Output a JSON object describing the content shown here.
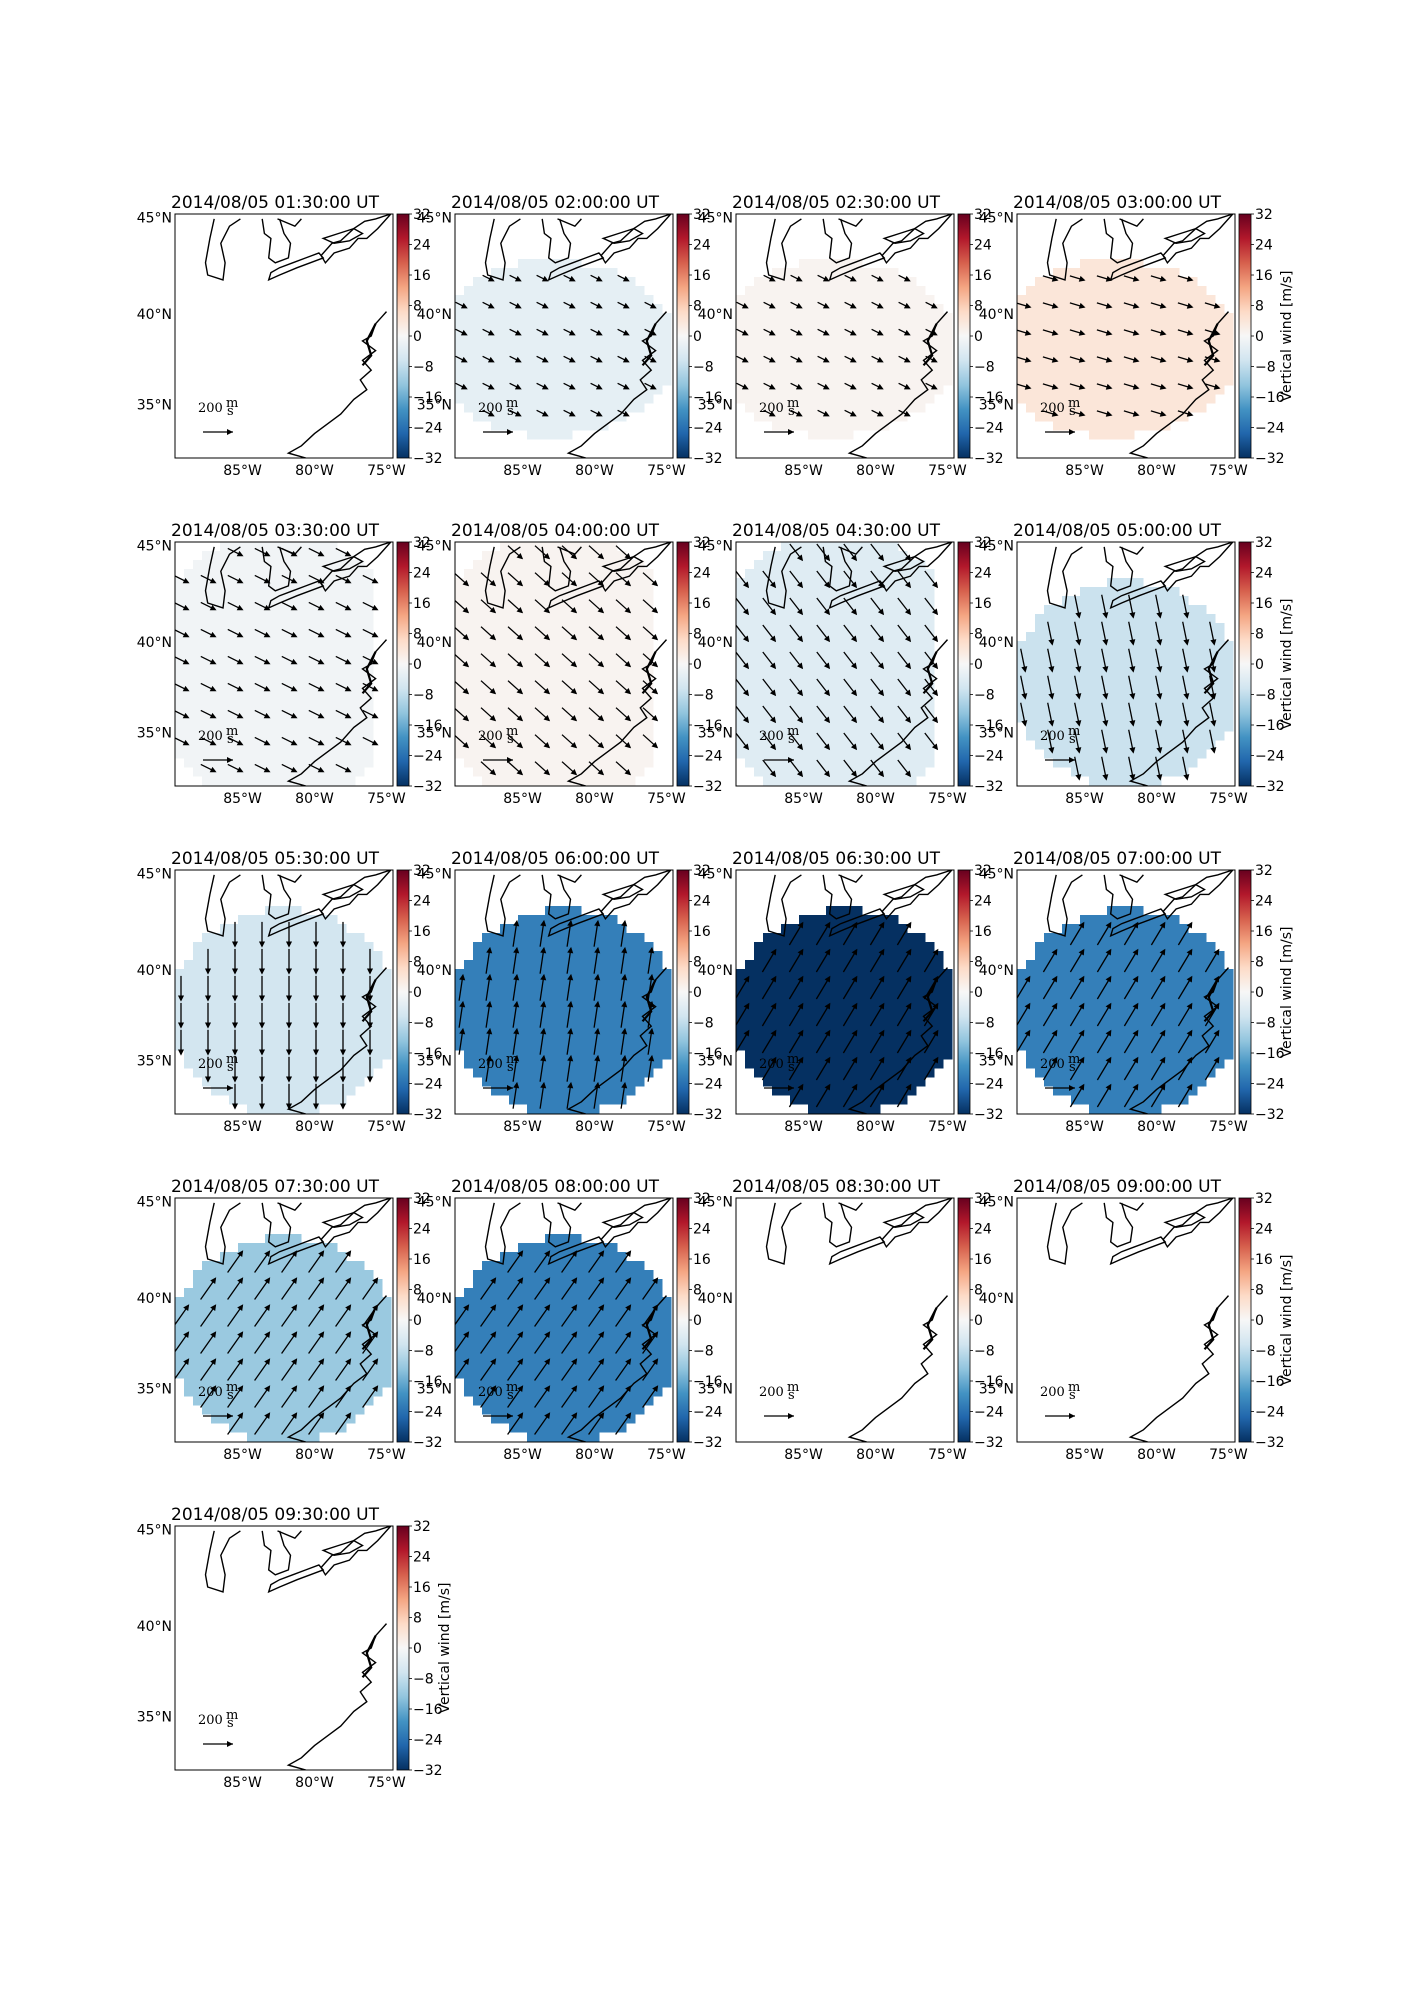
{
  "frame_date": "2014/08/05",
  "time_suffix": "UT",
  "colorbar": {
    "label": "Vertical wind [m/s]",
    "ticks": [
      "32",
      "24",
      "16",
      "8",
      "0",
      "−8",
      "−16",
      "−24",
      "−32"
    ],
    "range": [
      -32,
      32
    ],
    "colors": [
      "#053061",
      "#2166ac",
      "#4393c3",
      "#92c5de",
      "#d1e5f0",
      "#f7f7f7",
      "#fddbc7",
      "#f4a582",
      "#d6604d",
      "#b2182b",
      "#67001f"
    ]
  },
  "lat_ticks": [
    "45°N",
    "40°N",
    "35°N"
  ],
  "lon_ticks": [
    "85°W",
    "80°W",
    "75°W"
  ],
  "scale_arrow": {
    "value": "200",
    "units_num": "m",
    "units_den": "s"
  },
  "panels": [
    {
      "time": "01:30:00",
      "vz": null,
      "region": "none",
      "arrow_dir": [
        0,
        0
      ],
      "arrow_len": 0
    },
    {
      "time": "02:00:00",
      "vz": -3,
      "region": "small",
      "arrow_dir": [
        1,
        0.5
      ],
      "arrow_len": 0.45
    },
    {
      "time": "02:30:00",
      "vz": 1,
      "region": "small",
      "arrow_dir": [
        1,
        0.5
      ],
      "arrow_len": 0.45
    },
    {
      "time": "03:00:00",
      "vz": 4,
      "region": "small",
      "arrow_dir": [
        1,
        0.3
      ],
      "arrow_len": 0.55
    },
    {
      "time": "03:30:00",
      "vz": -1,
      "region": "large",
      "arrow_dir": [
        1,
        0.5
      ],
      "arrow_len": 0.6
    },
    {
      "time": "04:00:00",
      "vz": 1,
      "region": "large",
      "arrow_dir": [
        1,
        0.9
      ],
      "arrow_len": 0.7
    },
    {
      "time": "04:30:00",
      "vz": -4,
      "region": "large",
      "arrow_dir": [
        1,
        1.3
      ],
      "arrow_len": 0.75
    },
    {
      "time": "05:00:00",
      "vz": -7,
      "region": "mid",
      "arrow_dir": [
        0.2,
        1
      ],
      "arrow_len": 0.85
    },
    {
      "time": "05:30:00",
      "vz": -6,
      "region": "mid",
      "arrow_dir": [
        0,
        1
      ],
      "arrow_len": 0.9
    },
    {
      "time": "06:00:00",
      "vz": -22,
      "region": "mid",
      "arrow_dir": [
        0.15,
        -1
      ],
      "arrow_len": 0.95
    },
    {
      "time": "06:30:00",
      "vz": -32,
      "region": "mid",
      "arrow_dir": [
        0.6,
        -1
      ],
      "arrow_len": 0.95
    },
    {
      "time": "07:00:00",
      "vz": -22,
      "region": "mid",
      "arrow_dir": [
        0.6,
        -1
      ],
      "arrow_len": 0.95
    },
    {
      "time": "07:30:00",
      "vz": -12,
      "region": "mid",
      "arrow_dir": [
        0.7,
        -1
      ],
      "arrow_len": 0.95
    },
    {
      "time": "08:00:00",
      "vz": -22,
      "region": "mid",
      "arrow_dir": [
        0.7,
        -1
      ],
      "arrow_len": 0.95
    },
    {
      "time": "08:30:00",
      "vz": null,
      "region": "none",
      "arrow_dir": [
        0,
        0
      ],
      "arrow_len": 0
    },
    {
      "time": "09:00:00",
      "vz": null,
      "region": "none",
      "arrow_dir": [
        0,
        0
      ],
      "arrow_len": 0
    },
    {
      "time": "09:30:00",
      "vz": null,
      "region": "none",
      "arrow_dir": [
        0,
        0
      ],
      "arrow_len": 0
    }
  ]
}
